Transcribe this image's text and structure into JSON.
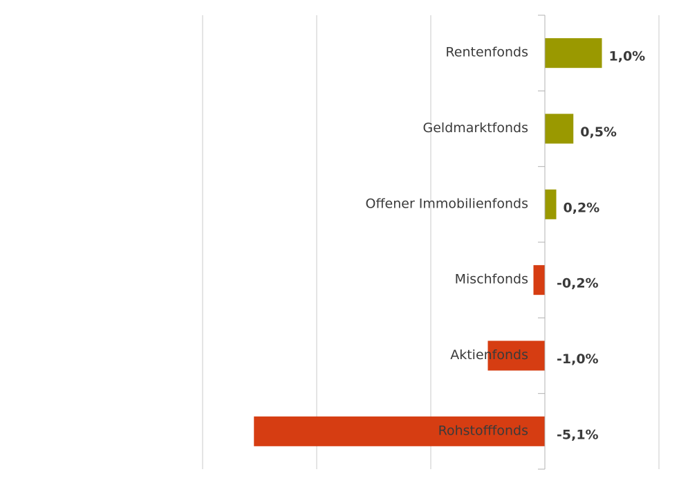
{
  "chart_data": {
    "type": "bar",
    "orientation": "horizontal",
    "categories": [
      "Rentenfonds",
      "Geldmarktfonds",
      "Offener Immobilienfonds",
      "Mischfonds",
      "Aktienfonds",
      "Rohstofffonds"
    ],
    "values": [
      1.0,
      0.5,
      0.2,
      -0.2,
      -1.0,
      -5.1
    ],
    "value_labels": [
      "1,0%",
      "0,5%",
      "0,2%",
      "-0,2%",
      "-1,0%",
      "-5,1%"
    ],
    "xlim": [
      -6,
      2
    ],
    "grid": true,
    "legend": "none"
  },
  "colors": {
    "positive": "#9a9900",
    "negative": "#d63d12",
    "grid": "#c8c8c8",
    "axis": "#b0b0b0",
    "text": "#3a3a3a"
  }
}
